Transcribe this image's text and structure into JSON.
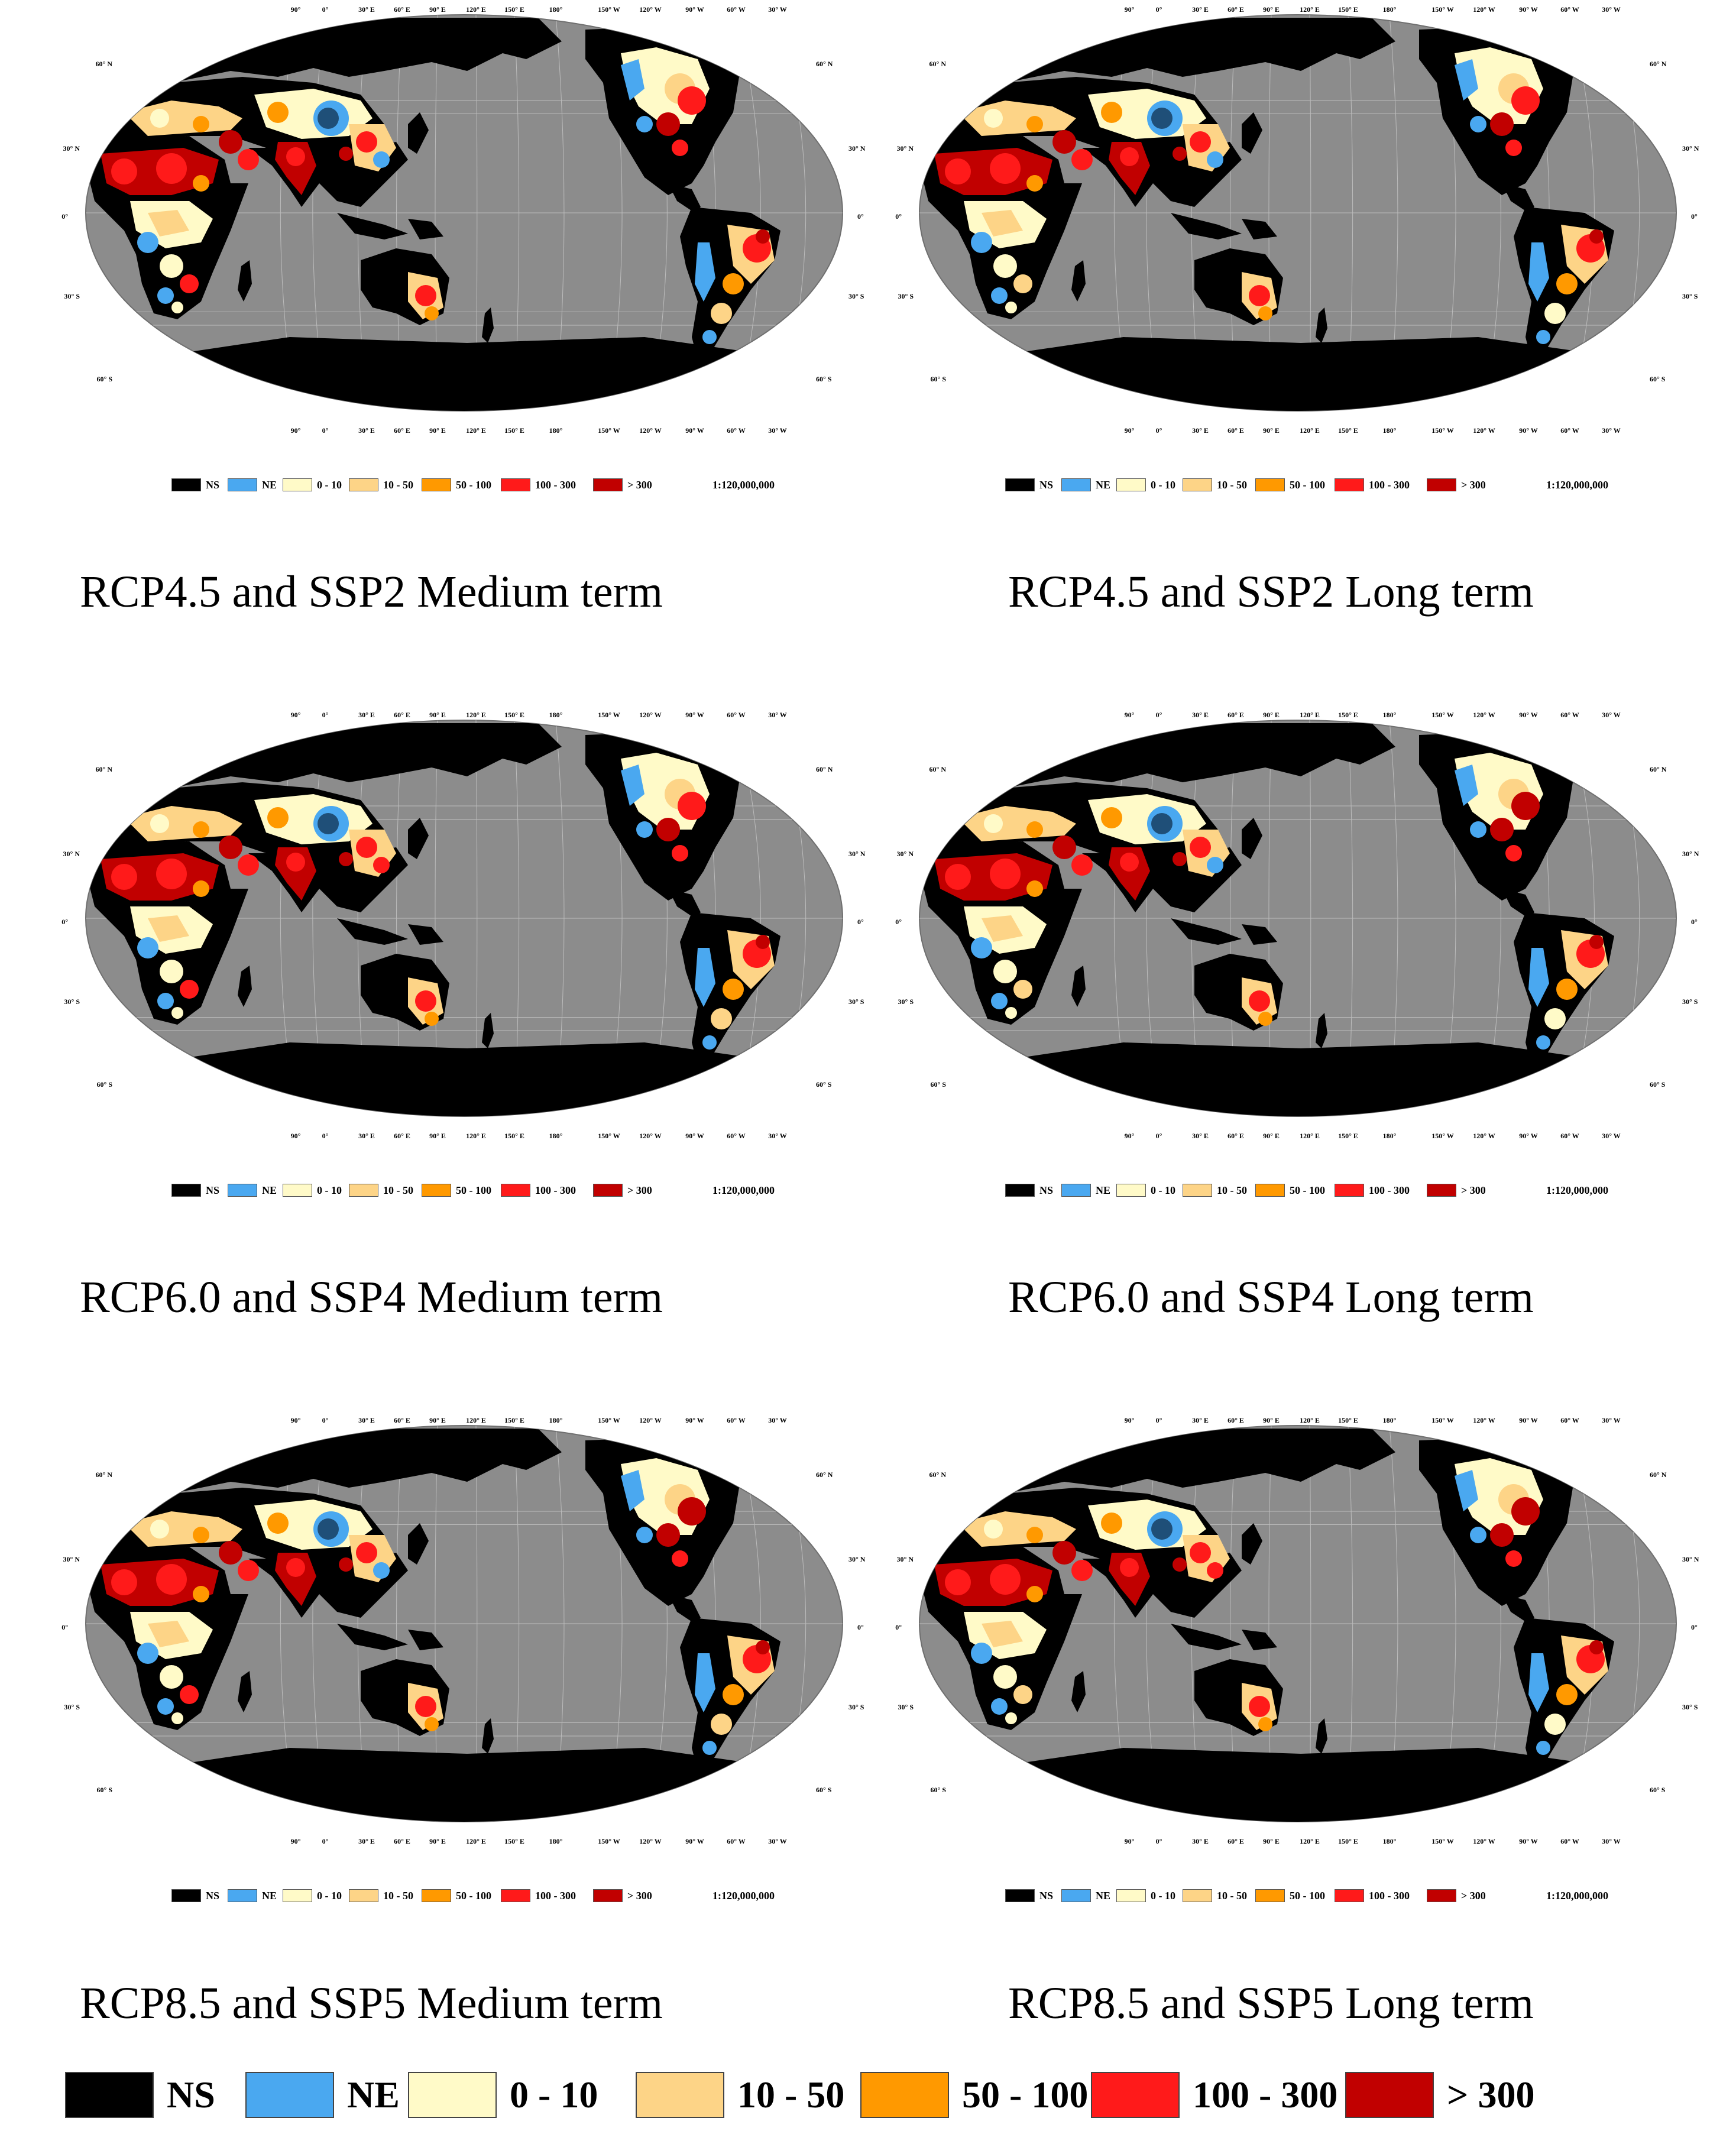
{
  "colors": {
    "ocean": "#8c8c8c",
    "NS": "#000000",
    "NE": "#4aa8f0",
    "0 - 10": "#fffac8",
    "10 - 50": "#fdd487",
    "50 - 100": "#ff9900",
    "100 - 300": "#ff1a1a",
    ">300": "#c10000"
  },
  "legend": [
    {
      "label": "NS",
      "key": "NS"
    },
    {
      "label": "NE",
      "key": "NE"
    },
    {
      "label": "0 - 10",
      "key": "0 - 10"
    },
    {
      "label": "10 - 50",
      "key": "10 - 50"
    },
    {
      "label": "50 - 100",
      "key": "50 - 100"
    },
    {
      "label": "100 - 300",
      "key": "100 - 300"
    },
    {
      "label": "> 300",
      "key": ">300"
    }
  ],
  "scale": "1:120,000,000",
  "longitude_labels": [
    "90°",
    "0°",
    "30° E",
    "60° E",
    "90° E",
    "120° E",
    "150° E",
    "180°",
    "150° W",
    "120° W",
    "90° W",
    "60° W",
    "30° W"
  ],
  "latitude_labels": {
    "left": [
      "60° N",
      "30° N",
      "0°",
      "30° S",
      "60° S"
    ],
    "right": [
      "60° N",
      "30° N",
      "0°",
      "30° S",
      "60° S"
    ]
  },
  "panels": [
    {
      "id": "p1",
      "caption": "RCP4.5 and SSP2 Medium term"
    },
    {
      "id": "p2",
      "caption": "RCP4.5 and SSP2 Long term"
    },
    {
      "id": "p3",
      "caption": "RCP6.0 and SSP4 Medium term"
    },
    {
      "id": "p4",
      "caption": "RCP6.0 and SSP4 Long term"
    },
    {
      "id": "p5",
      "caption": "RCP8.5 and SSP5 Medium term"
    },
    {
      "id": "p6",
      "caption": "RCP8.5 and SSP5 Long term"
    }
  ]
}
